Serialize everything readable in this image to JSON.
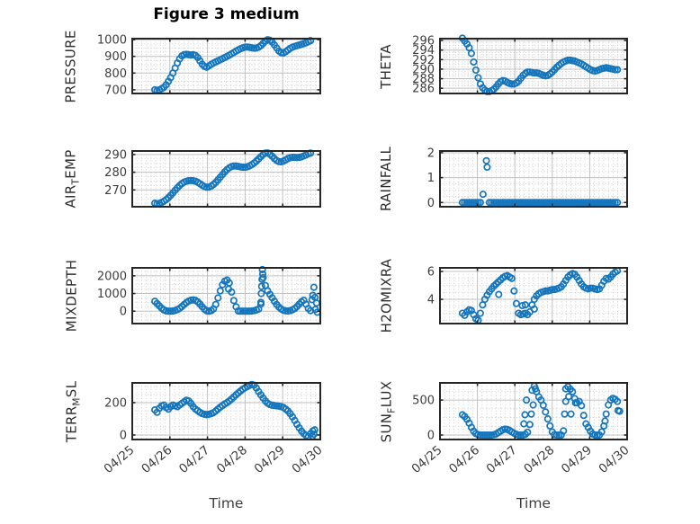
{
  "title": "Figure 3 medium",
  "xlabel": "Time",
  "marker_color": "#1576bd",
  "axis_color": "#262626",
  "major_grid_color": "#c0c0c0",
  "minor_grid_color": "#c9c9c9",
  "xlim": [
    0,
    5
  ],
  "x_ticks": {
    "positions": [
      0,
      1,
      2,
      3,
      4,
      5
    ],
    "labels": [
      "04/25",
      "04/26",
      "04/27",
      "04/28",
      "04/29",
      "04/30"
    ]
  },
  "chart_data": [
    {
      "type": "scatter",
      "name": "PRESSURE",
      "label_parts": [
        {
          "text": "PRESSURE"
        }
      ],
      "yticks": [
        700,
        800,
        900,
        1000
      ],
      "ylim": [
        678,
        1006
      ],
      "y_minor_step": 25,
      "series": {
        "x0": 0.6,
        "dx": 0.06,
        "y": [
          700,
          696,
          700,
          706,
          715,
          730,
          750,
          773,
          800,
          830,
          860,
          885,
          903,
          910,
          912,
          910,
          908,
          910,
          906,
          893,
          873,
          853,
          840,
          835,
          843,
          852,
          860,
          867,
          873,
          880,
          886,
          893,
          900,
          907,
          915,
          923,
          931,
          939,
          946,
          951,
          955,
          956,
          954,
          951,
          949,
          950,
          955,
          964,
          978,
          992,
          1000,
          996,
          985,
          968,
          950,
          932,
          922,
          920,
          928,
          938,
          948,
          955,
          960,
          964,
          968,
          972,
          976,
          981,
          987,
          994
        ]
      },
      "extra_points": []
    },
    {
      "type": "scatter",
      "name": "THETA",
      "label_parts": [
        {
          "text": "THETA"
        }
      ],
      "yticks": [
        286,
        288,
        290,
        292,
        294,
        296
      ],
      "ylim": [
        284.9,
        296.4
      ],
      "y_minor_step": 0.5,
      "series": {
        "x0": 0.6,
        "dx": 0.06,
        "y": [
          296.5,
          295.9,
          295.3,
          294.5,
          293.3,
          291.5,
          289.8,
          288.2,
          286.9,
          286.1,
          285.6,
          285.3,
          285.3,
          285.5,
          285.8,
          286.3,
          286.9,
          287.4,
          287.6,
          287.5,
          287.2,
          287,
          286.9,
          286.9,
          287.1,
          287.5,
          288.1,
          288.7,
          289.1,
          289.4,
          289.4,
          289.3,
          289.2,
          289.2,
          289.1,
          288.9,
          288.7,
          288.6,
          288.7,
          289,
          289.4,
          289.9,
          290.4,
          290.8,
          291.2,
          291.5,
          291.7,
          291.9,
          291.9,
          291.8,
          291.7,
          291.5,
          291.3,
          291.1,
          290.8,
          290.5,
          290.2,
          289.9,
          289.7,
          289.6,
          289.7,
          289.9,
          290.1,
          290.2,
          290.3,
          290.2,
          290.1,
          290,
          289.9,
          289.9
        ]
      },
      "extra_points": []
    },
    {
      "type": "scatter",
      "name": "AIR_TEMP",
      "label_parts": [
        {
          "text": "AIR"
        },
        {
          "text": "T",
          "sub": true
        },
        {
          "text": "EMP"
        }
      ],
      "yticks": [
        270,
        280,
        290
      ],
      "ylim": [
        260.5,
        292
      ],
      "y_minor_step": 2.5,
      "series": {
        "x0": 0.6,
        "dx": 0.06,
        "y": [
          262.5,
          262.2,
          262.4,
          262.9,
          263.6,
          264.5,
          265.6,
          266.9,
          268.3,
          269.8,
          271.2,
          272.5,
          273.6,
          274.4,
          274.9,
          275.2,
          275.3,
          275.2,
          274.9,
          274.3,
          273.5,
          272.6,
          271.9,
          271.5,
          271.6,
          272.2,
          273.1,
          274.3,
          275.7,
          277.2,
          278.7,
          280.2,
          281.5,
          282.5,
          283.2,
          283.5,
          283.5,
          283.3,
          283,
          282.8,
          282.8,
          283.1,
          283.6,
          284.3,
          285.2,
          286.3,
          287.5,
          288.8,
          290,
          290.8,
          290.9,
          290.2,
          289,
          287.7,
          286.6,
          286,
          285.9,
          286.3,
          287,
          287.7,
          288.2,
          288.4,
          288.4,
          288.3,
          288.4,
          288.7,
          289.2,
          289.8,
          290.4,
          290.8
        ]
      },
      "extra_points": []
    },
    {
      "type": "scatter",
      "name": "RAINFALL",
      "label_parts": [
        {
          "text": "RAINFALL"
        }
      ],
      "yticks": [
        0,
        1,
        2
      ],
      "ylim": [
        -0.17,
        2.07
      ],
      "y_minor_step": 0.25,
      "series": {
        "x0": 0.6,
        "dx": 0.06,
        "y": [
          0,
          0,
          0,
          0,
          0,
          0,
          0,
          0,
          0,
          null,
          null,
          null,
          0,
          0,
          0,
          0,
          0,
          0,
          0,
          0,
          0,
          0,
          0,
          0,
          0,
          0,
          0,
          0,
          0,
          0,
          0,
          0,
          0,
          0,
          0,
          0,
          0,
          0,
          0,
          0,
          0,
          0,
          0,
          0,
          0,
          0,
          0,
          0,
          0,
          0,
          0,
          0,
          0,
          0,
          0,
          0,
          0,
          0,
          0,
          0,
          0,
          0,
          0,
          0,
          0,
          0,
          0,
          0,
          0,
          0
        ]
      },
      "extra_points": [
        [
          1.15,
          0.33
        ],
        [
          1.24,
          1.68
        ],
        [
          1.26,
          1.42
        ]
      ]
    },
    {
      "type": "scatter",
      "name": "MIXDEPTH",
      "label_parts": [
        {
          "text": "MIXDEPTH"
        }
      ],
      "yticks": [
        0,
        1000,
        2000
      ],
      "ylim": [
        -700,
        2450
      ],
      "y_minor_step": 250,
      "series": {
        "x0": 0.6,
        "dx": 0.06,
        "y": [
          560,
          430,
          300,
          170,
          70,
          20,
          0,
          0,
          10,
          40,
          90,
          160,
          260,
          380,
          490,
          570,
          620,
          640,
          610,
          530,
          400,
          250,
          110,
          20,
          0,
          30,
          130,
          380,
          750,
          1150,
          1500,
          1700,
          1760,
          1600,
          1080,
          600,
          250,
          10,
          0,
          0,
          0,
          0,
          0,
          10,
          30,
          70,
          120,
          400,
          1900,
          1450,
          1150,
          950,
          760,
          560,
          380,
          230,
          120,
          50,
          20,
          10,
          30,
          80,
          150,
          260,
          400,
          530,
          620,
          400,
          150,
          30
        ]
      },
      "extra_points": [
        [
          3.42,
          500
        ],
        [
          3.43,
          1000
        ],
        [
          3.44,
          1400
        ],
        [
          3.45,
          1800
        ],
        [
          3.46,
          2350
        ],
        [
          3.47,
          2100
        ],
        [
          2.56,
          1250
        ],
        [
          4.78,
          650
        ],
        [
          4.8,
          900
        ],
        [
          4.83,
          1350
        ],
        [
          4.86,
          780
        ],
        [
          4.9,
          460
        ],
        [
          4.87,
          100
        ],
        [
          4.92,
          -60
        ]
      ]
    },
    {
      "type": "scatter",
      "name": "H2OMIXRA",
      "label_parts": [
        {
          "text": "H2OMIXRA"
        }
      ],
      "yticks": [
        4,
        6
      ],
      "ylim": [
        2.26,
        6.26
      ],
      "y_minor_step": 0.5,
      "series": {
        "x0": 0.6,
        "dx": 0.06,
        "y": [
          3,
          2.85,
          3.1,
          3.25,
          3.2,
          2.9,
          2.6,
          2.5,
          3,
          3.6,
          4,
          4.3,
          4.55,
          4.75,
          4.95,
          5.1,
          5.25,
          5.4,
          5.55,
          5.65,
          5.7,
          5.6,
          5.5,
          4.6,
          3.7,
          3,
          2.9,
          2.95,
          3,
          2.9,
          3.1,
          3.6,
          4,
          4.25,
          4.4,
          4.5,
          4.55,
          4.6,
          4.6,
          4.65,
          4.7,
          4.7,
          4.75,
          4.8,
          4.9,
          5.1,
          5.35,
          5.6,
          5.75,
          5.85,
          5.8,
          5.6,
          5.35,
          5.1,
          4.9,
          4.8,
          4.75,
          4.8,
          4.8,
          4.75,
          4.7,
          4.75,
          5,
          5.3,
          5.5,
          5.45,
          5.6,
          5.8,
          5.95,
          6.05
        ]
      },
      "extra_points": [
        [
          1.57,
          4.35
        ],
        [
          2.2,
          3.55
        ],
        [
          2.28,
          3.6
        ],
        [
          2.52,
          3.3
        ]
      ]
    },
    {
      "type": "scatter",
      "name": "TERR_MSL",
      "label_parts": [
        {
          "text": "TERR"
        },
        {
          "text": "M",
          "sub": true
        },
        {
          "text": "SL"
        }
      ],
      "yticks": [
        0,
        200
      ],
      "ylim": [
        -28,
        322
      ],
      "y_minor_step": 50,
      "series": {
        "x0": 0.6,
        "dx": 0.06,
        "y": [
          155,
          140,
          165,
          180,
          185,
          170,
          160,
          175,
          185,
          180,
          175,
          185,
          195,
          205,
          215,
          210,
          195,
          175,
          160,
          150,
          140,
          132,
          128,
          126,
          128,
          132,
          138,
          148,
          160,
          172,
          182,
          192,
          200,
          210,
          222,
          235,
          248,
          260,
          272,
          283,
          292,
          300,
          307,
          312,
          308,
          290,
          268,
          248,
          228,
          210,
          196,
          188,
          184,
          182,
          180,
          178,
          175,
          170,
          160,
          148,
          132,
          112,
          90,
          66,
          44,
          24,
          8,
          -4,
          -10,
          8
        ]
      },
      "extra_points": [
        [
          4.8,
          25
        ],
        [
          4.85,
          32
        ],
        [
          4.83,
          5
        ],
        [
          4.79,
          -8
        ]
      ]
    },
    {
      "type": "scatter",
      "name": "SUN_FLUX",
      "label_parts": [
        {
          "text": "SUN"
        },
        {
          "text": "F",
          "sub": true
        },
        {
          "text": "LUX"
        }
      ],
      "yticks": [
        0,
        500
      ],
      "ylim": [
        -64,
        745
      ],
      "y_minor_step": 125,
      "series": {
        "x0": 0.6,
        "dx": 0.06,
        "y": [
          290,
          265,
          225,
          170,
          110,
          55,
          20,
          5,
          0,
          0,
          0,
          0,
          0,
          0,
          5,
          15,
          35,
          55,
          75,
          85,
          80,
          65,
          45,
          25,
          10,
          0,
          0,
          0,
          10,
          40,
          150,
          640,
          700,
          620,
          545,
          500,
          425,
          330,
          230,
          130,
          45,
          5,
          0,
          0,
          0,
          60,
          660,
          690,
          655,
          620,
          520,
          460,
          480,
          420,
          280,
          160,
          110,
          55,
          15,
          0,
          0,
          0,
          45,
          130,
          300,
          430,
          500,
          525,
          510,
          480
        ]
      },
      "extra_points": [
        [
          2.31,
          500
        ],
        [
          2.27,
          290
        ],
        [
          2.24,
          160
        ],
        [
          2.44,
          300
        ],
        [
          2.49,
          430
        ],
        [
          2.55,
          660
        ],
        [
          3.33,
          300
        ],
        [
          3.36,
          480
        ],
        [
          3.44,
          550
        ],
        [
          3.5,
          300
        ],
        [
          3.62,
          460
        ],
        [
          4.41,
          200
        ],
        [
          4.76,
          350
        ],
        [
          4.8,
          340
        ]
      ]
    }
  ]
}
